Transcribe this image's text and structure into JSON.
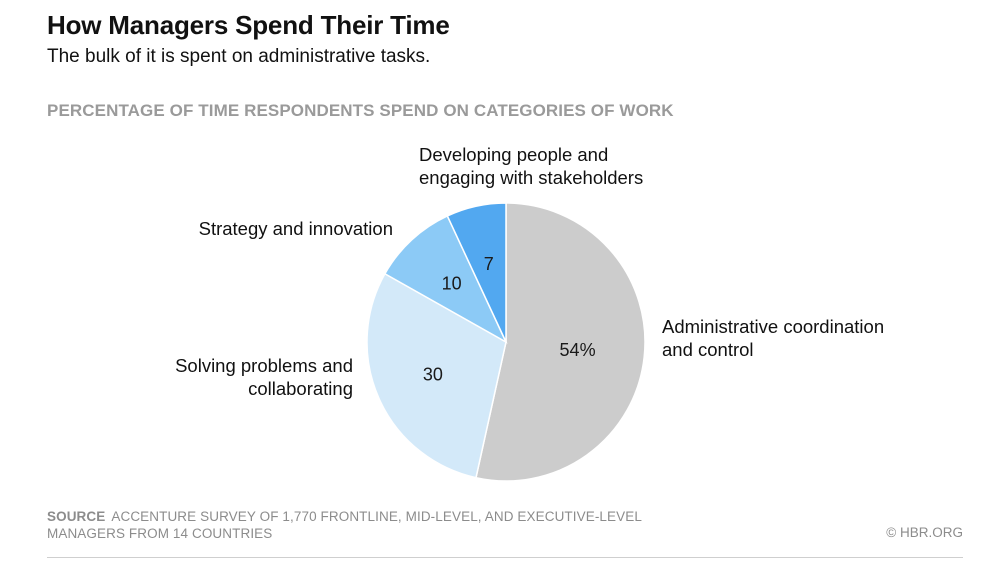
{
  "header": {
    "title": "How Managers Spend Their Time",
    "subtitle": "The bulk of it is spent on administrative tasks."
  },
  "chart_heading": "PERCENTAGE OF TIME RESPONDENTS SPEND ON CATEGORIES OF WORK",
  "chart_data": {
    "type": "pie",
    "title": "PERCENTAGE OF TIME RESPONDENTS SPEND ON CATEGORIES OF WORK",
    "slices": [
      {
        "category_lines": [
          "Administrative coordination",
          "and control"
        ],
        "value": 54,
        "value_label": "54%",
        "color": "#cccccc"
      },
      {
        "category_lines": [
          "Solving problems and",
          "collaborating"
        ],
        "value": 30,
        "value_label": "30",
        "color": "#d3e9f9"
      },
      {
        "category_lines": [
          "Strategy and innovation"
        ],
        "value": 10,
        "value_label": "10",
        "color": "#8ccaf6"
      },
      {
        "category_lines": [
          "Developing people and",
          "engaging with stakeholders"
        ],
        "value": 7,
        "value_label": "7",
        "color": "#52a8f0"
      }
    ],
    "start": "12 o'clock",
    "direction": "clockwise"
  },
  "footer": {
    "source_label": "SOURCE",
    "source_text_line1": "ACCENTURE SURVEY OF 1,770 FRONTLINE, MID-LEVEL, AND EXECUTIVE-LEVEL",
    "source_text_line2": "MANAGERS FROM 14 COUNTRIES",
    "credit": "© HBR.ORG"
  }
}
